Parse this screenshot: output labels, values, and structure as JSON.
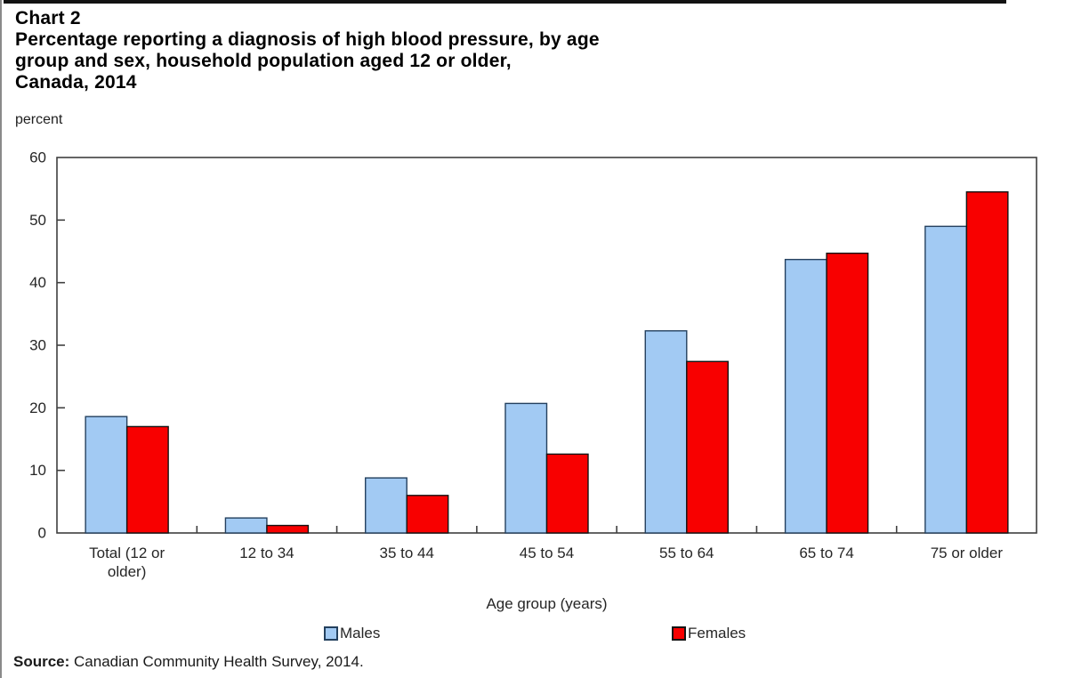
{
  "header": {
    "chart_label": "Chart 2",
    "title_lines": [
      "Percentage reporting a diagnosis of high blood pressure, by age",
      "group and sex, household population aged 12 or older,",
      "Canada, 2014"
    ]
  },
  "chart_data": {
    "type": "bar",
    "title": "Percentage reporting a diagnosis of high blood pressure, by age group and sex, household population aged 12 or older, Canada, 2014",
    "categories": [
      "Total (12 or older)",
      "12 to 34",
      "35 to 44",
      "45 to 54",
      "55 to 64",
      "65 to 74",
      "75 or older"
    ],
    "series": [
      {
        "name": "Males",
        "color": "#A2CAF3",
        "border": "#24405E",
        "values": [
          18.6,
          2.4,
          8.8,
          20.7,
          32.3,
          43.7,
          49.0
        ]
      },
      {
        "name": "Females",
        "color": "#F80000",
        "border": "#141414",
        "values": [
          17.0,
          1.2,
          6.0,
          12.6,
          27.4,
          44.7,
          54.5
        ]
      }
    ],
    "xlabel": "Age group (years)",
    "ylabel": "percent",
    "ylim": [
      0,
      60
    ],
    "ytick_step": 10,
    "yticks": [
      0,
      10,
      20,
      30,
      40,
      50,
      60
    ],
    "grid": false,
    "legend_position": "bottom"
  },
  "footer": {
    "source_label": "Source:",
    "source_text": " Canadian Community Health Survey, 2014."
  }
}
